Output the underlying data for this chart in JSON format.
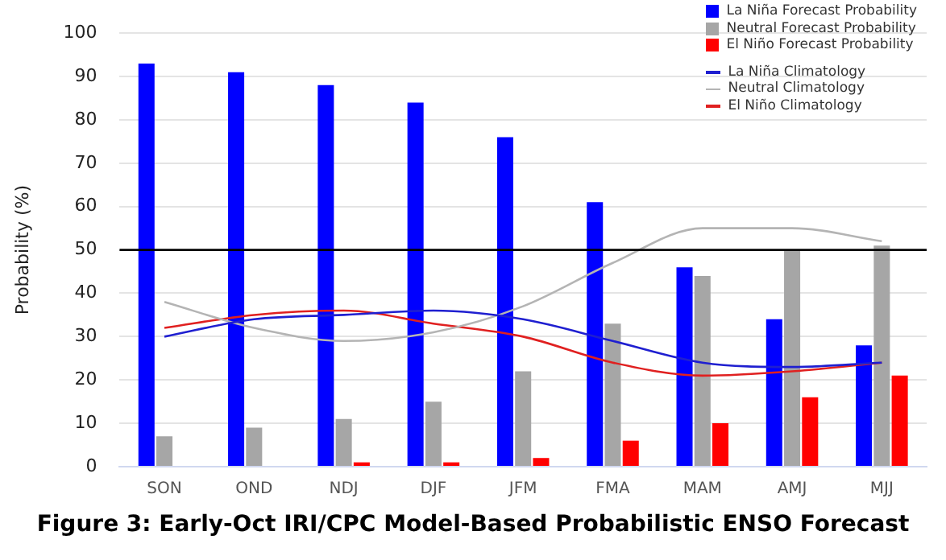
{
  "chart_data": {
    "type": "bar",
    "title": "Figure 3: Early-Oct IRI/CPC Model-Based Probabilistic ENSO Forecast",
    "ylabel": "Probability (%)",
    "categories": [
      "SON",
      "OND",
      "NDJ",
      "DJF",
      "JFM",
      "FMA",
      "MAM",
      "AMJ",
      "MJJ"
    ],
    "series": [
      {
        "name": "La Niña Forecast Probability",
        "type": "bar",
        "color": "#0000ff",
        "values": [
          93,
          91,
          88,
          84,
          76,
          61,
          46,
          34,
          28
        ]
      },
      {
        "name": "Neutral Forecast Probability",
        "type": "bar",
        "color": "#a6a6a6",
        "values": [
          7,
          9,
          11,
          15,
          22,
          33,
          44,
          50,
          51
        ]
      },
      {
        "name": "El Niño Forecast Probability",
        "type": "bar",
        "color": "#ff0000",
        "values": [
          0,
          0,
          1,
          1,
          2,
          6,
          10,
          16,
          21
        ]
      },
      {
        "name": "La Niña Climatology",
        "type": "line",
        "color": "#1f1fd0",
        "values": [
          30,
          34,
          35,
          36,
          34,
          29,
          24,
          23,
          24
        ]
      },
      {
        "name": "Neutral Climatology",
        "type": "line",
        "color": "#b4b4b4",
        "values": [
          38,
          32,
          29,
          31,
          37,
          47,
          55,
          55,
          52
        ]
      },
      {
        "name": "El Niño Climatology",
        "type": "line",
        "color": "#e02020",
        "values": [
          32,
          35,
          36,
          33,
          30,
          24,
          21,
          22,
          24
        ]
      }
    ],
    "ylim": [
      0,
      100
    ],
    "yticks": [
      0,
      10,
      20,
      30,
      40,
      50,
      60,
      70,
      80,
      90,
      100
    ],
    "ref_lines": [
      {
        "axis": "y",
        "value": 50,
        "color": "#000000"
      }
    ],
    "grid": "y",
    "legend": "top right",
    "marker": "none"
  }
}
